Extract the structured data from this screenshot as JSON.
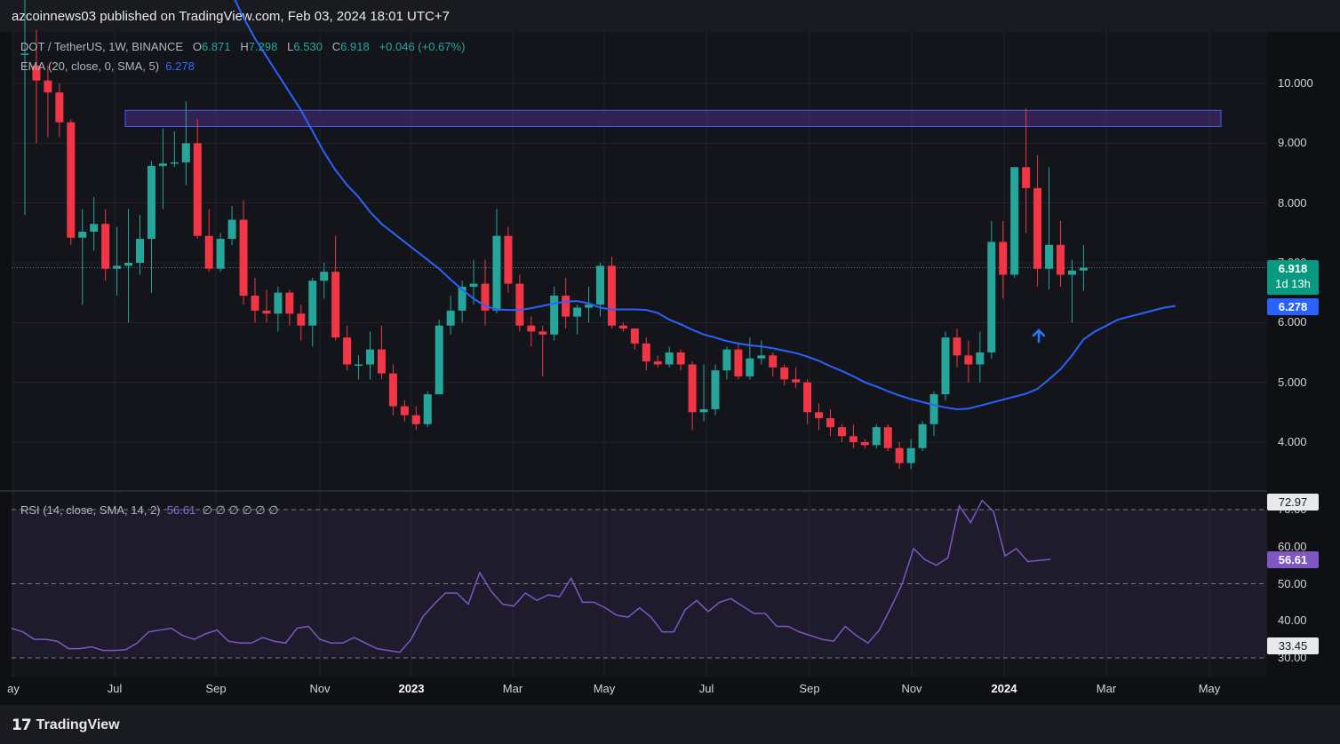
{
  "header": {
    "published": "azcoinnews03 published on TradingView.com, Feb 03, 2024 18:01 UTC+7"
  },
  "legend": {
    "symbol": "DOT / TetherUS, 1W, BINANCE",
    "o_label": "O",
    "o_value": "6.871",
    "h_label": "H",
    "h_value": "7.298",
    "l_label": "L",
    "l_value": "6.530",
    "c_label": "C",
    "c_value": "6.918",
    "change": "+0.046 (+0.67%)",
    "ema_label": "EMA (20, close, 0, SMA, 5)",
    "ema_value": "6.278",
    "rsi_label": "RSI (14, close, SMA, 14, 2)",
    "rsi_value": "56.61",
    "rsi_extra": "∅ ∅ ∅ ∅ ∅ ∅"
  },
  "price_labels": {
    "last": "6.918",
    "countdown": "1d 13h",
    "ema": "6.278",
    "rsi_upper": "72.97",
    "rsi_value": "56.61",
    "rsi_lower": "33.45"
  },
  "colors": {
    "up": "#26a69a",
    "down": "#f23645",
    "ema": "#2962ff",
    "rsi": "#7e57c2",
    "zone": "#4b2d7a"
  },
  "footer": {
    "brand": "TradingView"
  },
  "chart_data": [
    {
      "type": "candlestick",
      "title": "DOT / TetherUS, 1W, BINANCE",
      "price_axis": [
        "10.000",
        "9.000",
        "8.000",
        "7.000",
        "6.000",
        "5.000",
        "4.000"
      ],
      "time_axis": [
        "ay",
        "Jul",
        "Sep",
        "Nov",
        "2023",
        "Mar",
        "May",
        "Jul",
        "Sep",
        "Nov",
        "2024",
        "Mar",
        "May"
      ],
      "resistance_zone": [
        9.28,
        9.55
      ],
      "last_price": 6.918,
      "candles": [
        {
          "o": 10.5,
          "h": 11.5,
          "l": 7.8,
          "c": 10.5
        },
        {
          "o": 10.3,
          "h": 10.9,
          "l": 9.0,
          "c": 10.05
        },
        {
          "o": 10.05,
          "h": 10.3,
          "l": 9.1,
          "c": 9.85
        },
        {
          "o": 9.85,
          "h": 10.0,
          "l": 9.1,
          "c": 9.35
        },
        {
          "o": 9.35,
          "h": 9.4,
          "l": 7.3,
          "c": 7.42
        },
        {
          "o": 7.42,
          "h": 7.9,
          "l": 6.3,
          "c": 7.52
        },
        {
          "o": 7.52,
          "h": 8.1,
          "l": 7.2,
          "c": 7.65
        },
        {
          "o": 7.65,
          "h": 7.9,
          "l": 6.7,
          "c": 6.9
        },
        {
          "o": 6.9,
          "h": 7.6,
          "l": 6.45,
          "c": 6.95
        },
        {
          "o": 6.95,
          "h": 7.9,
          "l": 6.0,
          "c": 7.0
        },
        {
          "o": 7.0,
          "h": 7.8,
          "l": 6.8,
          "c": 7.4
        },
        {
          "o": 7.4,
          "h": 8.7,
          "l": 6.5,
          "c": 8.62
        },
        {
          "o": 8.62,
          "h": 9.25,
          "l": 7.9,
          "c": 8.66
        },
        {
          "o": 8.66,
          "h": 9.2,
          "l": 8.6,
          "c": 8.68
        },
        {
          "o": 8.68,
          "h": 9.7,
          "l": 8.3,
          "c": 9.0
        },
        {
          "o": 9.0,
          "h": 9.4,
          "l": 7.4,
          "c": 7.45
        },
        {
          "o": 7.45,
          "h": 7.9,
          "l": 6.85,
          "c": 6.9
        },
        {
          "o": 6.9,
          "h": 7.5,
          "l": 6.85,
          "c": 7.4
        },
        {
          "o": 7.4,
          "h": 7.95,
          "l": 7.3,
          "c": 7.72
        },
        {
          "o": 7.72,
          "h": 8.05,
          "l": 6.3,
          "c": 6.45
        },
        {
          "o": 6.45,
          "h": 6.75,
          "l": 6.0,
          "c": 6.2
        },
        {
          "o": 6.2,
          "h": 6.55,
          "l": 6.0,
          "c": 6.15
        },
        {
          "o": 6.15,
          "h": 6.6,
          "l": 5.85,
          "c": 6.5
        },
        {
          "o": 6.5,
          "h": 6.55,
          "l": 5.95,
          "c": 6.15
        },
        {
          "o": 6.15,
          "h": 6.3,
          "l": 5.7,
          "c": 5.95
        },
        {
          "o": 5.95,
          "h": 6.75,
          "l": 5.6,
          "c": 6.7
        },
        {
          "o": 6.7,
          "h": 7.0,
          "l": 6.4,
          "c": 6.85
        },
        {
          "o": 6.85,
          "h": 7.45,
          "l": 5.7,
          "c": 5.75
        },
        {
          "o": 5.75,
          "h": 5.95,
          "l": 5.2,
          "c": 5.3
        },
        {
          "o": 5.3,
          "h": 5.45,
          "l": 5.05,
          "c": 5.3
        },
        {
          "o": 5.3,
          "h": 5.85,
          "l": 5.05,
          "c": 5.55
        },
        {
          "o": 5.55,
          "h": 5.95,
          "l": 5.05,
          "c": 5.15
        },
        {
          "o": 5.15,
          "h": 5.3,
          "l": 4.45,
          "c": 4.6
        },
        {
          "o": 4.6,
          "h": 4.7,
          "l": 4.35,
          "c": 4.45
        },
        {
          "o": 4.45,
          "h": 4.6,
          "l": 4.2,
          "c": 4.3
        },
        {
          "o": 4.3,
          "h": 4.85,
          "l": 4.25,
          "c": 4.8
        },
        {
          "o": 4.8,
          "h": 6.05,
          "l": 4.8,
          "c": 5.95
        },
        {
          "o": 5.95,
          "h": 6.45,
          "l": 5.8,
          "c": 6.2
        },
        {
          "o": 6.2,
          "h": 6.7,
          "l": 6.0,
          "c": 6.6
        },
        {
          "o": 6.6,
          "h": 7.05,
          "l": 6.3,
          "c": 6.65
        },
        {
          "o": 6.65,
          "h": 7.05,
          "l": 5.95,
          "c": 6.2
        },
        {
          "o": 6.2,
          "h": 7.9,
          "l": 6.15,
          "c": 7.45
        },
        {
          "o": 7.45,
          "h": 7.6,
          "l": 6.5,
          "c": 6.65
        },
        {
          "o": 6.65,
          "h": 6.8,
          "l": 5.85,
          "c": 5.95
        },
        {
          "o": 5.95,
          "h": 6.1,
          "l": 5.6,
          "c": 5.85
        },
        {
          "o": 5.85,
          "h": 5.95,
          "l": 5.1,
          "c": 5.8
        },
        {
          "o": 5.8,
          "h": 6.6,
          "l": 5.7,
          "c": 6.45
        },
        {
          "o": 6.45,
          "h": 6.75,
          "l": 5.9,
          "c": 6.1
        },
        {
          "o": 6.1,
          "h": 6.3,
          "l": 5.8,
          "c": 6.25
        },
        {
          "o": 6.25,
          "h": 6.6,
          "l": 6.0,
          "c": 6.3
        },
        {
          "o": 6.3,
          "h": 7.0,
          "l": 6.1,
          "c": 6.95
        },
        {
          "o": 6.95,
          "h": 7.1,
          "l": 5.9,
          "c": 5.95
        },
        {
          "o": 5.95,
          "h": 6.0,
          "l": 5.85,
          "c": 5.9
        },
        {
          "o": 5.9,
          "h": 5.9,
          "l": 5.55,
          "c": 5.65
        },
        {
          "o": 5.65,
          "h": 5.75,
          "l": 5.2,
          "c": 5.35
        },
        {
          "o": 5.35,
          "h": 5.45,
          "l": 5.25,
          "c": 5.3
        },
        {
          "o": 5.3,
          "h": 5.6,
          "l": 5.25,
          "c": 5.5
        },
        {
          "o": 5.5,
          "h": 5.55,
          "l": 5.2,
          "c": 5.3
        },
        {
          "o": 5.3,
          "h": 5.35,
          "l": 4.2,
          "c": 4.5
        },
        {
          "o": 4.5,
          "h": 5.3,
          "l": 4.35,
          "c": 4.55
        },
        {
          "o": 4.55,
          "h": 5.3,
          "l": 4.45,
          "c": 5.2
        },
        {
          "o": 5.2,
          "h": 5.6,
          "l": 5.05,
          "c": 5.55
        },
        {
          "o": 5.55,
          "h": 5.65,
          "l": 5.05,
          "c": 5.1
        },
        {
          "o": 5.1,
          "h": 5.75,
          "l": 5.05,
          "c": 5.4
        },
        {
          "o": 5.4,
          "h": 5.7,
          "l": 5.3,
          "c": 5.45
        },
        {
          "o": 5.45,
          "h": 5.5,
          "l": 5.1,
          "c": 5.25
        },
        {
          "o": 5.25,
          "h": 5.3,
          "l": 4.95,
          "c": 5.05
        },
        {
          "o": 5.05,
          "h": 5.25,
          "l": 4.9,
          "c": 5.0
        },
        {
          "o": 5.0,
          "h": 5.05,
          "l": 4.3,
          "c": 4.5
        },
        {
          "o": 4.5,
          "h": 4.65,
          "l": 4.2,
          "c": 4.4
        },
        {
          "o": 4.4,
          "h": 4.55,
          "l": 4.1,
          "c": 4.25
        },
        {
          "o": 4.25,
          "h": 4.3,
          "l": 4.0,
          "c": 4.1
        },
        {
          "o": 4.1,
          "h": 4.3,
          "l": 3.9,
          "c": 4.0
        },
        {
          "o": 4.0,
          "h": 4.05,
          "l": 3.9,
          "c": 3.95
        },
        {
          "o": 3.95,
          "h": 4.3,
          "l": 3.9,
          "c": 4.25
        },
        {
          "o": 4.25,
          "h": 4.3,
          "l": 3.85,
          "c": 3.9
        },
        {
          "o": 3.9,
          "h": 4.0,
          "l": 3.55,
          "c": 3.65
        },
        {
          "o": 3.65,
          "h": 4.05,
          "l": 3.55,
          "c": 3.9
        },
        {
          "o": 3.9,
          "h": 4.35,
          "l": 3.85,
          "c": 4.3
        },
        {
          "o": 4.3,
          "h": 4.85,
          "l": 4.1,
          "c": 4.8
        },
        {
          "o": 4.8,
          "h": 5.85,
          "l": 4.7,
          "c": 5.75
        },
        {
          "o": 5.75,
          "h": 5.9,
          "l": 5.25,
          "c": 5.45
        },
        {
          "o": 5.45,
          "h": 5.7,
          "l": 5.0,
          "c": 5.3
        },
        {
          "o": 5.3,
          "h": 5.85,
          "l": 5.0,
          "c": 5.5
        },
        {
          "o": 5.5,
          "h": 7.7,
          "l": 5.4,
          "c": 7.35
        },
        {
          "o": 7.35,
          "h": 7.7,
          "l": 6.4,
          "c": 6.8
        },
        {
          "o": 6.8,
          "h": 8.6,
          "l": 6.75,
          "c": 8.6
        },
        {
          "o": 8.6,
          "h": 9.58,
          "l": 7.5,
          "c": 8.25
        },
        {
          "o": 8.25,
          "h": 8.8,
          "l": 6.6,
          "c": 6.9
        },
        {
          "o": 6.9,
          "h": 8.6,
          "l": 6.55,
          "c": 7.3
        },
        {
          "o": 7.3,
          "h": 7.7,
          "l": 6.6,
          "c": 6.8
        },
        {
          "o": 6.8,
          "h": 7.05,
          "l": 6.0,
          "c": 6.87
        },
        {
          "o": 6.871,
          "h": 7.298,
          "l": 6.53,
          "c": 6.918
        }
      ],
      "ema": [
        13,
        12.7,
        12.3,
        11.9,
        11.5,
        11.1,
        10.75,
        10.45,
        10.15,
        9.85,
        9.55,
        9.2,
        8.85,
        8.55,
        8.3,
        8.1,
        7.85,
        7.65,
        7.5,
        7.35,
        7.2,
        7.05,
        6.9,
        6.72,
        6.55,
        6.4,
        6.28,
        6.22,
        6.21,
        6.21,
        6.24,
        6.28,
        6.32,
        6.35,
        6.36,
        6.32,
        6.25,
        6.22,
        6.22,
        6.22,
        6.21,
        6.16,
        6.05,
        5.97,
        5.88,
        5.8,
        5.75,
        5.69,
        5.65,
        5.62,
        5.6,
        5.57,
        5.53,
        5.49,
        5.43,
        5.36,
        5.27,
        5.19,
        5.1,
        5.0,
        4.93,
        4.85,
        4.78,
        4.72,
        4.67,
        4.62,
        4.58,
        4.55,
        4.56,
        4.61,
        4.66,
        4.71,
        4.76,
        4.81,
        4.89,
        5.05,
        5.22,
        5.45,
        5.72,
        5.85,
        5.95,
        6.05,
        6.1,
        6.15,
        6.2,
        6.25,
        6.278
      ],
      "ema_start_index": 14
    },
    {
      "type": "line",
      "title": "RSI (14, close, SMA, 14, 2)",
      "y_axis": [
        "70.00",
        "60.00",
        "50.00",
        "40.00",
        "30.00"
      ],
      "bands": [
        30,
        50,
        70
      ],
      "last_value": 56.61,
      "values": [
        38.0,
        37.0,
        35.0,
        35.0,
        34.5,
        32.5,
        32.5,
        33.0,
        32.0,
        32.0,
        32.2,
        34.0,
        37.0,
        37.5,
        38.0,
        36.0,
        35.0,
        36.5,
        37.5,
        34.5,
        34.0,
        34.0,
        35.5,
        34.5,
        34.0,
        38.0,
        38.5,
        35.0,
        34.0,
        34.0,
        35.5,
        34.0,
        32.5,
        32.0,
        31.5,
        35.0,
        41.0,
        44.5,
        47.5,
        47.5,
        44.5,
        53.0,
        48.0,
        44.5,
        44.0,
        47.5,
        45.5,
        47.0,
        46.5,
        51.5,
        45.0,
        45.0,
        43.5,
        41.5,
        41.0,
        43.5,
        41.0,
        37.0,
        37.0,
        43.0,
        45.5,
        42.5,
        45.0,
        46.0,
        44.0,
        42.0,
        42.0,
        38.5,
        38.5,
        37.0,
        36.0,
        35.0,
        34.5,
        38.5,
        36.0,
        34.0,
        37.5,
        43.5,
        50.0,
        59.5,
        56.5,
        55.0,
        57.0,
        71.0,
        66.5,
        72.5,
        69.5,
        57.5,
        59.5,
        56.0,
        56.3,
        56.61
      ]
    }
  ]
}
